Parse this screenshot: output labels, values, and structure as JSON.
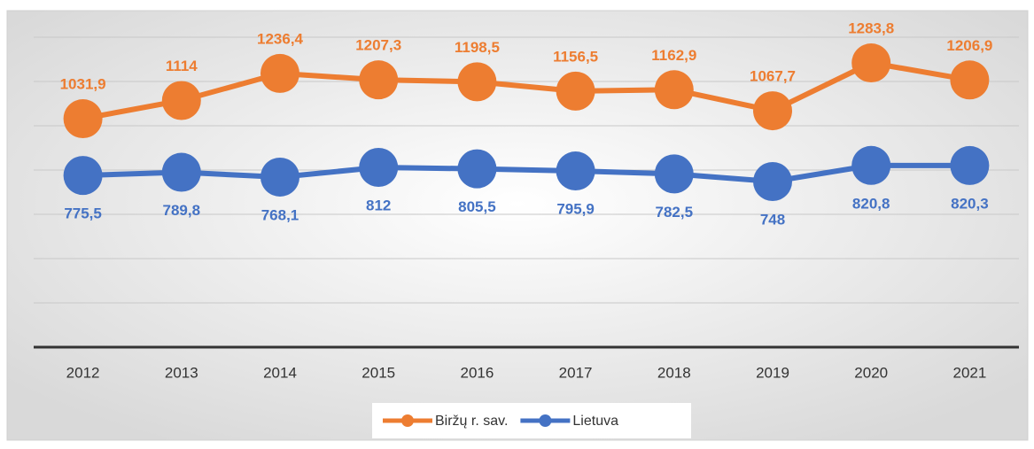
{
  "chart_data": {
    "type": "line",
    "categories": [
      "2012",
      "2013",
      "2014",
      "2015",
      "2016",
      "2017",
      "2018",
      "2019",
      "2020",
      "2021"
    ],
    "series": [
      {
        "name": "Biržų r. sav.",
        "color": "#ED7D31",
        "values": [
          1031.9,
          1114,
          1236.4,
          1207.3,
          1198.5,
          1156.5,
          1162.9,
          1067.7,
          1283.8,
          1206.9
        ],
        "value_labels": [
          "1031,9",
          "1114",
          "1236,4",
          "1207,3",
          "1198,5",
          "1156,5",
          "1162,9",
          "1067,7",
          "1283,8",
          "1206,9"
        ]
      },
      {
        "name": "Lietuva",
        "color": "#4472C4",
        "values": [
          775.5,
          789.8,
          768.1,
          812,
          805.5,
          795.9,
          782.5,
          748,
          820.8,
          820.3
        ],
        "value_labels": [
          "775,5",
          "789,8",
          "768,1",
          "812",
          "805,5",
          "795,9",
          "782,5",
          "748",
          "820,8",
          "820,3"
        ]
      }
    ],
    "ylim": [
      0,
      1400
    ],
    "yticks": [
      0,
      200,
      400,
      600,
      800,
      1000,
      1200,
      1400
    ],
    "grid": true
  }
}
